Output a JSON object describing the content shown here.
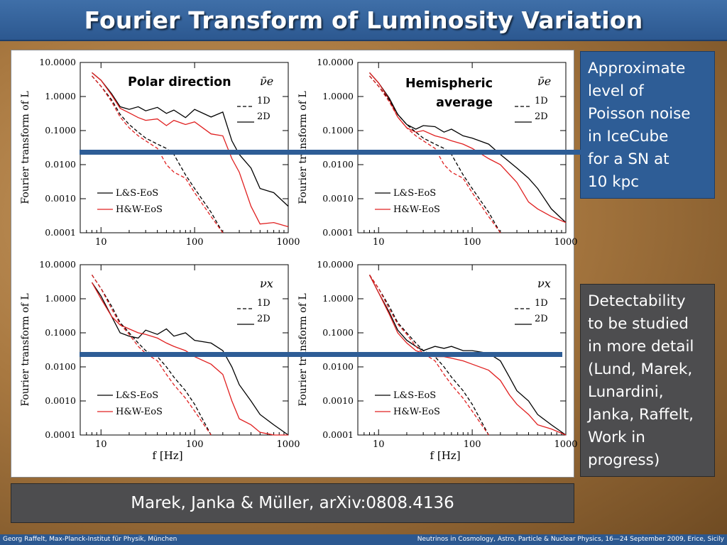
{
  "title": "Fourier Transform of Luminosity Variation",
  "notes": {
    "poisson": [
      "Approximate",
      "level of",
      "Poisson noise",
      "in IceCube",
      "for a SN at",
      "10 kpc"
    ],
    "detect": [
      "Detectability",
      "to be studied",
      "in more detail",
      "(Lund, Marek,",
      "Lunardini,",
      "Janka, Raffelt,",
      "Work in",
      "progress)"
    ]
  },
  "reference": "Marek, Janka & Müller, arXiv:0808.4136",
  "footer": {
    "left": "Georg Raffelt, Max-Planck-Institut für Physik, München",
    "right": "Neutrinos in Cosmology, Astro, Particle & Nuclear Physics, 16—24 September 2009, Erice, Sicily"
  },
  "colors": {
    "title_bar": "#2c5890",
    "note_blue": "#2e5d96",
    "note_gray": "#4d4d4f",
    "ls_eos": "#000000",
    "hw_eos": "#e02020"
  },
  "chart_data": [
    {
      "type": "line",
      "annotation": "Polar direction",
      "flavor": "ν̄e",
      "ylabel": "Fourier transform of L",
      "xlabel": "",
      "xscale": "log",
      "yscale": "log",
      "xlim": [
        6,
        1000
      ],
      "ylim": [
        0.0001,
        10
      ],
      "xticks": [
        "10",
        "100",
        "1000"
      ],
      "yticks": [
        "10.0000",
        "1.0000",
        "0.1000",
        "0.0100",
        "0.0010",
        "0.0001"
      ],
      "legend": {
        "dims": [
          "1D",
          "2D"
        ],
        "eos": [
          "L&S-EoS",
          "H&W-EoS"
        ]
      },
      "series": [
        {
          "name": "L&S-EoS",
          "dim": "2D",
          "color": "#000000",
          "x": [
            8,
            10,
            13,
            16,
            20,
            25,
            30,
            40,
            50,
            60,
            80,
            100,
            150,
            200,
            250,
            300,
            400,
            500,
            700,
            1000
          ],
          "y": [
            5,
            3,
            1.2,
            0.5,
            0.42,
            0.5,
            0.38,
            0.48,
            0.32,
            0.4,
            0.24,
            0.42,
            0.25,
            0.35,
            0.05,
            0.02,
            0.008,
            0.002,
            0.0015,
            0.0006
          ]
        },
        {
          "name": "H&W-EoS",
          "dim": "2D",
          "color": "#e02020",
          "x": [
            8,
            10,
            13,
            16,
            20,
            25,
            30,
            40,
            50,
            60,
            80,
            100,
            150,
            200,
            250,
            300,
            400,
            500,
            700,
            1000
          ],
          "y": [
            5,
            3,
            1.1,
            0.45,
            0.33,
            0.24,
            0.2,
            0.22,
            0.14,
            0.2,
            0.15,
            0.18,
            0.08,
            0.07,
            0.015,
            0.006,
            0.0006,
            0.00018,
            0.0002,
            0.00015
          ]
        },
        {
          "name": "L&S-EoS",
          "dim": "1D",
          "color": "#000000",
          "x": [
            8,
            10,
            13,
            16,
            20,
            25,
            30,
            40,
            50,
            60,
            80,
            100,
            150,
            200
          ],
          "y": [
            4,
            2,
            0.8,
            0.3,
            0.15,
            0.09,
            0.06,
            0.04,
            0.03,
            0.02,
            0.005,
            0.002,
            0.0004,
            0.0001
          ]
        },
        {
          "name": "H&W-EoS",
          "dim": "1D",
          "color": "#e02020",
          "x": [
            8,
            10,
            13,
            16,
            20,
            25,
            30,
            40,
            50,
            60,
            80,
            100,
            150,
            200
          ],
          "y": [
            4,
            2,
            0.7,
            0.25,
            0.12,
            0.07,
            0.05,
            0.03,
            0.01,
            0.006,
            0.004,
            0.0015,
            0.0003,
            0.0001
          ]
        }
      ]
    },
    {
      "type": "line",
      "annotation": "Hemispheric average",
      "flavor": "ν̄e",
      "ylabel": "Fourier transform of L",
      "xlabel": "",
      "xscale": "log",
      "yscale": "log",
      "xlim": [
        6,
        1000
      ],
      "ylim": [
        0.0001,
        10
      ],
      "xticks": [
        "10",
        "100",
        "1000"
      ],
      "yticks": [
        "10.0000",
        "1.0000",
        "0.1000",
        "0.0100",
        "0.0010",
        "0.0001"
      ],
      "legend": {
        "dims": [
          "1D",
          "2D"
        ],
        "eos": [
          "L&S-EoS",
          "H&W-EoS"
        ]
      },
      "series": [
        {
          "name": "L&S-EoS",
          "dim": "2D",
          "color": "#000000",
          "x": [
            8,
            10,
            13,
            16,
            20,
            25,
            30,
            40,
            50,
            60,
            80,
            100,
            150,
            200,
            300,
            400,
            500,
            700,
            1000
          ],
          "y": [
            5,
            2.5,
            0.9,
            0.3,
            0.15,
            0.11,
            0.14,
            0.13,
            0.09,
            0.11,
            0.07,
            0.06,
            0.04,
            0.02,
            0.008,
            0.004,
            0.002,
            0.0005,
            0.0002
          ]
        },
        {
          "name": "H&W-EoS",
          "dim": "2D",
          "color": "#e02020",
          "x": [
            8,
            10,
            13,
            16,
            20,
            25,
            30,
            40,
            50,
            60,
            80,
            100,
            150,
            200,
            300,
            400,
            500,
            700,
            1000
          ],
          "y": [
            5,
            2.5,
            0.8,
            0.25,
            0.12,
            0.09,
            0.1,
            0.07,
            0.06,
            0.05,
            0.04,
            0.03,
            0.015,
            0.01,
            0.003,
            0.0008,
            0.0005,
            0.0003,
            0.0002
          ]
        },
        {
          "name": "L&S-EoS",
          "dim": "1D",
          "color": "#000000",
          "x": [
            8,
            10,
            13,
            16,
            20,
            25,
            30,
            40,
            50,
            60,
            80,
            100,
            150,
            200
          ],
          "y": [
            4,
            2,
            0.8,
            0.3,
            0.15,
            0.09,
            0.06,
            0.04,
            0.03,
            0.02,
            0.005,
            0.002,
            0.0004,
            0.0001
          ]
        },
        {
          "name": "H&W-EoS",
          "dim": "1D",
          "color": "#e02020",
          "x": [
            8,
            10,
            13,
            16,
            20,
            25,
            30,
            40,
            50,
            60,
            80,
            100,
            150,
            200
          ],
          "y": [
            4,
            2,
            0.7,
            0.25,
            0.12,
            0.07,
            0.05,
            0.03,
            0.01,
            0.006,
            0.004,
            0.0015,
            0.0003,
            0.0001
          ]
        }
      ]
    },
    {
      "type": "line",
      "flavor": "νx",
      "ylabel": "Fourier transform of L",
      "xlabel": "f [Hz]",
      "xscale": "log",
      "yscale": "log",
      "xlim": [
        6,
        1000
      ],
      "ylim": [
        0.0001,
        10
      ],
      "xticks": [
        "10",
        "100",
        "1000"
      ],
      "yticks": [
        "10.0000",
        "1.0000",
        "0.1000",
        "0.0100",
        "0.0010",
        "0.0001"
      ],
      "legend": {
        "dims": [
          "1D",
          "2D"
        ],
        "eos": [
          "L&S-EoS",
          "H&W-EoS"
        ]
      },
      "series": [
        {
          "name": "L&S-EoS",
          "dim": "2D",
          "color": "#000000",
          "x": [
            8,
            10,
            13,
            16,
            20,
            25,
            30,
            40,
            50,
            60,
            80,
            100,
            150,
            200,
            250,
            300,
            400,
            500,
            700,
            1000
          ],
          "y": [
            3,
            1.2,
            0.3,
            0.1,
            0.08,
            0.07,
            0.12,
            0.09,
            0.13,
            0.08,
            0.1,
            0.06,
            0.05,
            0.03,
            0.01,
            0.003,
            0.001,
            0.0004,
            0.0002,
            0.0001
          ]
        },
        {
          "name": "H&W-EoS",
          "dim": "2D",
          "color": "#e02020",
          "x": [
            8,
            10,
            13,
            16,
            20,
            25,
            30,
            40,
            50,
            60,
            80,
            100,
            150,
            200,
            250,
            300,
            400,
            500,
            700,
            1000
          ],
          "y": [
            3,
            1,
            0.3,
            0.17,
            0.13,
            0.1,
            0.09,
            0.07,
            0.05,
            0.04,
            0.03,
            0.02,
            0.012,
            0.006,
            0.001,
            0.0003,
            0.0002,
            0.00012,
            0.0001,
            0.0001
          ]
        },
        {
          "name": "L&S-EoS",
          "dim": "1D",
          "color": "#000000",
          "x": [
            8,
            10,
            13,
            16,
            20,
            25,
            30,
            40,
            50,
            60,
            80,
            100,
            150
          ],
          "y": [
            5,
            2,
            0.6,
            0.2,
            0.1,
            0.05,
            0.03,
            0.02,
            0.01,
            0.005,
            0.002,
            0.0008,
            0.0001
          ]
        },
        {
          "name": "H&W-EoS",
          "dim": "1D",
          "color": "#e02020",
          "x": [
            8,
            10,
            13,
            16,
            20,
            25,
            30,
            40,
            50,
            60,
            80,
            100,
            150
          ],
          "y": [
            5,
            2,
            0.5,
            0.18,
            0.09,
            0.04,
            0.025,
            0.015,
            0.006,
            0.003,
            0.0012,
            0.0005,
            0.0001
          ]
        }
      ]
    },
    {
      "type": "line",
      "flavor": "νx",
      "ylabel": "Fourier transform of L",
      "xlabel": "f [Hz]",
      "xscale": "log",
      "yscale": "log",
      "xlim": [
        6,
        1000
      ],
      "ylim": [
        0.0001,
        10
      ],
      "xticks": [
        "10",
        "100",
        "1000"
      ],
      "yticks": [
        "10.0000",
        "1.0000",
        "0.1000",
        "0.0100",
        "0.0010",
        "0.0001"
      ],
      "legend": {
        "dims": [
          "1D",
          "2D"
        ],
        "eos": [
          "L&S-EoS",
          "H&W-EoS"
        ]
      },
      "series": [
        {
          "name": "L&S-EoS",
          "dim": "2D",
          "color": "#000000",
          "x": [
            8,
            10,
            13,
            16,
            20,
            25,
            30,
            40,
            50,
            60,
            80,
            100,
            150,
            200,
            250,
            300,
            400,
            500,
            700,
            1000
          ],
          "y": [
            5,
            1.5,
            0.4,
            0.12,
            0.06,
            0.04,
            0.03,
            0.04,
            0.035,
            0.04,
            0.03,
            0.03,
            0.025,
            0.015,
            0.005,
            0.002,
            0.001,
            0.0004,
            0.0002,
            0.0001
          ]
        },
        {
          "name": "H&W-EoS",
          "dim": "2D",
          "color": "#e02020",
          "x": [
            8,
            10,
            13,
            16,
            20,
            25,
            30,
            40,
            50,
            60,
            80,
            100,
            150,
            200,
            250,
            300,
            400,
            500,
            700,
            1000
          ],
          "y": [
            5,
            1.5,
            0.35,
            0.1,
            0.05,
            0.03,
            0.025,
            0.02,
            0.02,
            0.018,
            0.015,
            0.012,
            0.008,
            0.004,
            0.0015,
            0.0008,
            0.0004,
            0.0002,
            0.00015,
            0.0001
          ]
        },
        {
          "name": "L&S-EoS",
          "dim": "1D",
          "color": "#000000",
          "x": [
            8,
            10,
            13,
            16,
            20,
            25,
            30,
            40,
            50,
            60,
            80,
            100,
            150
          ],
          "y": [
            5,
            2,
            0.6,
            0.2,
            0.1,
            0.05,
            0.03,
            0.02,
            0.01,
            0.005,
            0.002,
            0.0008,
            0.0001
          ]
        },
        {
          "name": "H&W-EoS",
          "dim": "1D",
          "color": "#e02020",
          "x": [
            8,
            10,
            13,
            16,
            20,
            25,
            30,
            40,
            50,
            60,
            80,
            100,
            150
          ],
          "y": [
            5,
            2,
            0.5,
            0.18,
            0.09,
            0.04,
            0.025,
            0.015,
            0.006,
            0.003,
            0.0012,
            0.0005,
            0.0001
          ]
        }
      ]
    }
  ]
}
